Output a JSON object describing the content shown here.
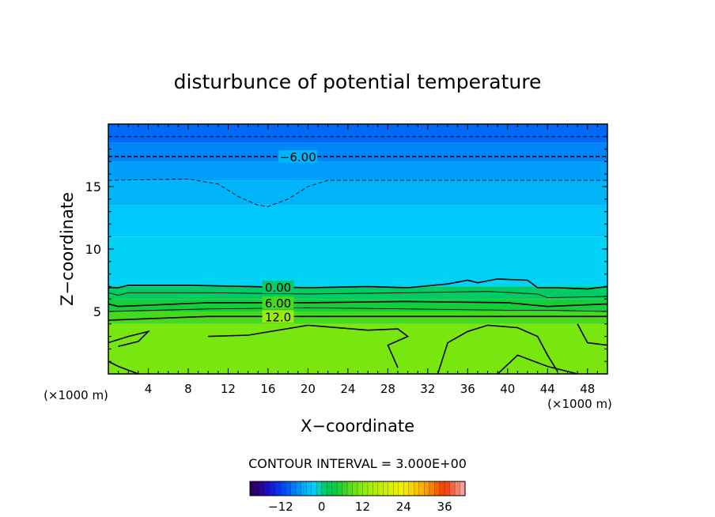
{
  "chart_data": {
    "type": "heatmap",
    "title": "disturbunce of potential temperature",
    "xlabel": "X−coordinate",
    "ylabel": "Z−coordinate",
    "x_unit_left": "(×1000 m)",
    "x_unit_right": "(×1000 m)",
    "xlim": [
      0,
      50
    ],
    "ylim": [
      0,
      20
    ],
    "x_ticks": [
      4,
      8,
      12,
      16,
      20,
      24,
      28,
      32,
      36,
      40,
      44,
      48
    ],
    "y_ticks": [
      5,
      10,
      15
    ],
    "contour_interval_text": "CONTOUR INTERVAL = 3.000E+00",
    "contour_labels": [
      "−6.00",
      "0.00",
      "6.00",
      "12.0"
    ],
    "colorbar": {
      "min": -21,
      "max": 42,
      "ticks": [
        "−12",
        "0",
        "12",
        "24",
        "36"
      ],
      "tick_values": [
        -12,
        0,
        12,
        24,
        36
      ]
    },
    "layers": [
      {
        "z_bottom": 18.5,
        "z_top": 20,
        "theta": -9
      },
      {
        "z_bottom": 17.0,
        "z_top": 18.5,
        "theta": -7.5
      },
      {
        "z_bottom": 15.5,
        "z_top": 17.0,
        "theta": -6
      },
      {
        "z_bottom": 13.5,
        "z_top": 15.5,
        "theta": -4.5
      },
      {
        "z_bottom": 11.0,
        "z_top": 13.5,
        "theta": -3
      },
      {
        "z_bottom": 7.0,
        "z_top": 11.0,
        "theta": -1.5
      },
      {
        "z_bottom": 6.0,
        "z_top": 7.0,
        "theta": 1.5
      },
      {
        "z_bottom": 5.0,
        "z_top": 6.0,
        "theta": 4.5
      },
      {
        "z_bottom": 4.0,
        "z_top": 5.0,
        "theta": 7.5
      },
      {
        "z_bottom": 0.0,
        "z_top": 4.0,
        "theta": 10.5
      }
    ],
    "contours": [
      {
        "level": -9,
        "style": "dashed",
        "points": [
          [
            0,
            19.0
          ],
          [
            50,
            19.0
          ]
        ]
      },
      {
        "level": -6,
        "style": "dashed",
        "label": "−6.00",
        "label_x": 19,
        "points": [
          [
            0,
            17.4
          ],
          [
            50,
            17.4
          ]
        ]
      },
      {
        "level": -3,
        "style": "dashed",
        "points": [
          [
            0,
            15.5
          ],
          [
            8,
            15.6
          ],
          [
            11,
            15.2
          ],
          [
            13,
            14.2
          ],
          [
            15,
            13.5
          ],
          [
            16,
            13.4
          ],
          [
            18,
            14.0
          ],
          [
            20,
            15.0
          ],
          [
            22,
            15.5
          ],
          [
            50,
            15.5
          ]
        ]
      },
      {
        "level": 0,
        "style": "solid",
        "label": "0.00",
        "label_x": 17,
        "points": [
          [
            0,
            6.9
          ],
          [
            1,
            6.9
          ],
          [
            2,
            7.1
          ],
          [
            8,
            7.1
          ],
          [
            14,
            7.0
          ],
          [
            20,
            6.9
          ],
          [
            26,
            7.0
          ],
          [
            30,
            6.9
          ],
          [
            34,
            7.2
          ],
          [
            36,
            7.5
          ],
          [
            37,
            7.3
          ],
          [
            39,
            7.6
          ],
          [
            42,
            7.5
          ],
          [
            43,
            6.9
          ],
          [
            45,
            6.9
          ],
          [
            48,
            6.8
          ],
          [
            50,
            7.0
          ]
        ]
      },
      {
        "level": 3,
        "style": "solid",
        "points": [
          [
            0,
            6.5
          ],
          [
            1,
            6.3
          ],
          [
            2,
            6.5
          ],
          [
            10,
            6.5
          ],
          [
            20,
            6.4
          ],
          [
            30,
            6.5
          ],
          [
            38,
            6.6
          ],
          [
            43,
            6.4
          ],
          [
            44,
            6.1
          ],
          [
            50,
            6.2
          ]
        ]
      },
      {
        "level": 6,
        "style": "solid",
        "label": "6.00",
        "label_x": 17,
        "points": [
          [
            0,
            5.6
          ],
          [
            1,
            5.4
          ],
          [
            10,
            5.7
          ],
          [
            20,
            5.7
          ],
          [
            30,
            5.8
          ],
          [
            40,
            5.7
          ],
          [
            44,
            5.4
          ],
          [
            50,
            5.6
          ]
        ]
      },
      {
        "level": 9,
        "style": "solid",
        "points": [
          [
            0,
            5.0
          ],
          [
            10,
            5.2
          ],
          [
            20,
            5.3
          ],
          [
            30,
            5.2
          ],
          [
            40,
            5.1
          ],
          [
            44,
            5.1
          ],
          [
            50,
            5.0
          ]
        ]
      },
      {
        "level": 12,
        "style": "solid",
        "label": "12.0",
        "label_x": 17,
        "points": [
          [
            0,
            4.3
          ],
          [
            10,
            4.6
          ],
          [
            20,
            4.6
          ],
          [
            30,
            4.6
          ],
          [
            40,
            4.6
          ],
          [
            50,
            4.6
          ]
        ]
      },
      {
        "level": 12,
        "style": "solid",
        "points": [
          [
            0,
            2.5
          ],
          [
            2,
            3.0
          ],
          [
            4,
            3.4
          ],
          [
            3,
            2.6
          ],
          [
            1,
            2.2
          ]
        ]
      },
      {
        "level": 12,
        "style": "solid",
        "points": [
          [
            10,
            3.0
          ],
          [
            14,
            3.1
          ],
          [
            20,
            3.9
          ],
          [
            26,
            3.5
          ],
          [
            29,
            3.6
          ],
          [
            30,
            3.0
          ],
          [
            28,
            2.3
          ],
          [
            29,
            0.5
          ]
        ]
      },
      {
        "level": 12,
        "style": "solid",
        "points": [
          [
            33,
            0
          ],
          [
            34,
            2.5
          ],
          [
            36,
            3.4
          ],
          [
            38,
            3.9
          ],
          [
            41,
            3.7
          ],
          [
            43,
            3.0
          ],
          [
            44,
            1.5
          ],
          [
            45,
            0.2
          ]
        ]
      },
      {
        "level": 12,
        "style": "solid",
        "points": [
          [
            39,
            0
          ],
          [
            41,
            1.5
          ],
          [
            44,
            0.6
          ],
          [
            47,
            0.0
          ]
        ]
      },
      {
        "level": 12,
        "style": "solid",
        "points": [
          [
            47,
            4.0
          ],
          [
            48,
            2.5
          ],
          [
            50,
            2.3
          ]
        ]
      },
      {
        "level": 12,
        "style": "solid",
        "points": [
          [
            0,
            1.0
          ],
          [
            1,
            0.6
          ],
          [
            3,
            0.0
          ]
        ]
      }
    ]
  }
}
